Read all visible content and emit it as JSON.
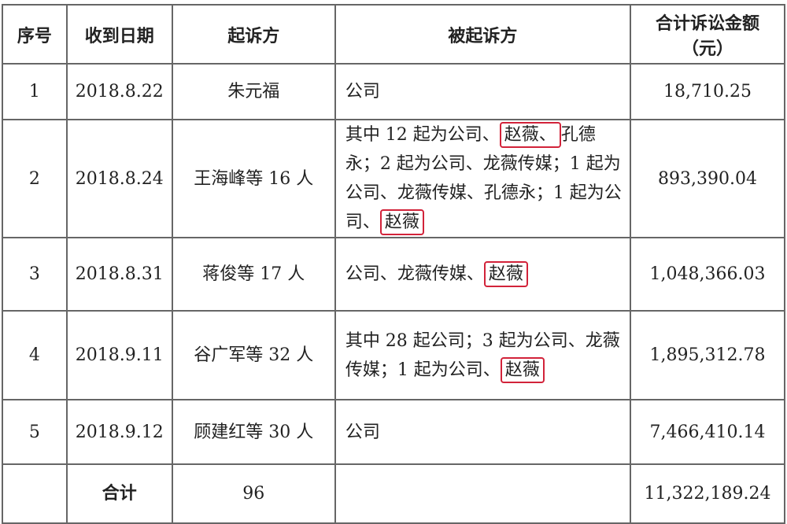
{
  "headers": [
    "序号",
    "收到日期",
    "起诉方",
    "被起诉方",
    "合计诉讼金额\n（元）"
  ],
  "header_amount_line1": "合计诉讼金额",
  "header_amount_line2": "（元）",
  "highlight_color": "#d2233a",
  "rows": [
    {
      "no": "1",
      "date": "2018.8.22",
      "plaintiff": "朱元福",
      "defendant": [
        {
          "t": "公司"
        }
      ],
      "amount": "18,710.25"
    },
    {
      "no": "2",
      "date": "2018.8.24",
      "plaintiff": "王海峰等 16 人",
      "defendant": [
        {
          "t": "其中 12 起为公司、"
        },
        {
          "t": "赵薇、",
          "hl": true
        },
        {
          "t": "孔德永；2 起为公司、龙薇传媒；1 起为公司、龙薇传媒、孔德永；1 起为公司、"
        },
        {
          "t": "赵薇",
          "hl": true
        }
      ],
      "amount": "893,390.04"
    },
    {
      "no": "3",
      "date": "2018.8.31",
      "plaintiff": "蒋俊等 17 人",
      "defendant": [
        {
          "t": "公司、龙薇传媒、"
        },
        {
          "t": "赵薇",
          "hl": true
        }
      ],
      "amount": "1,048,366.03"
    },
    {
      "no": "4",
      "date": "2018.9.11",
      "plaintiff": "谷广军等 32 人",
      "defendant": [
        {
          "t": "其中 28 起公司；3 起为公司、龙薇传媒；1 起为公司、"
        },
        {
          "t": "赵薇",
          "hl": true
        }
      ],
      "amount": "1,895,312.78"
    },
    {
      "no": "5",
      "date": "2018.9.12",
      "plaintiff": "顾建红等 30 人",
      "defendant": [
        {
          "t": "公司"
        }
      ],
      "amount": "7,466,410.14"
    }
  ],
  "total": {
    "label": "合计",
    "count": "96",
    "amount": "11,322,189.24"
  }
}
